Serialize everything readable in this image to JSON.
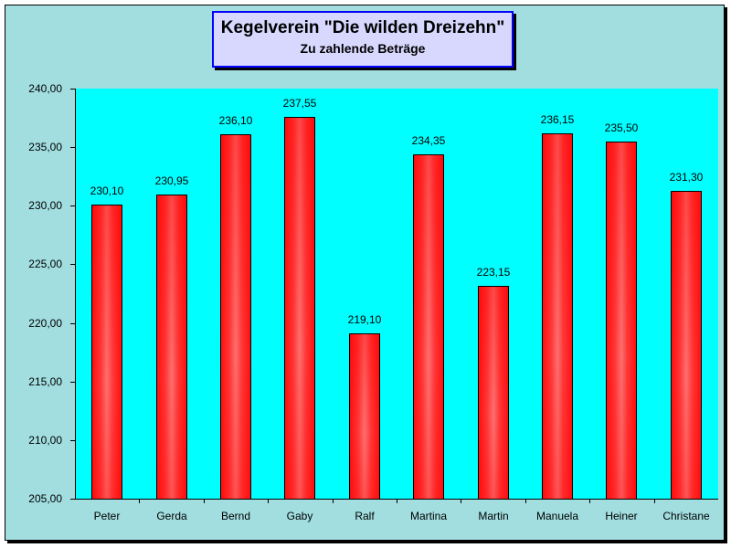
{
  "chart_data": {
    "type": "bar",
    "title": "Kegelverein \"Die wilden Dreizehn\"",
    "subtitle": "Zu zahlende Beträge",
    "xlabel": "",
    "ylabel": "",
    "ylim": [
      205,
      240
    ],
    "grid": false,
    "legend": null,
    "categories": [
      "Peter",
      "Gerda",
      "Bernd",
      "Gaby",
      "Ralf",
      "Martina",
      "Martin",
      "Manuela",
      "Heiner",
      "Christane"
    ],
    "values": [
      230.1,
      230.95,
      236.1,
      237.55,
      219.1,
      234.35,
      223.15,
      236.15,
      235.5,
      231.3
    ],
    "value_labels": [
      "230,10",
      "230,95",
      "236,10",
      "237,55",
      "219,10",
      "234,35",
      "223,15",
      "236,15",
      "235,50",
      "231,30"
    ],
    "y_ticks": [
      "240,00",
      "235,00",
      "230,00",
      "225,00",
      "220,00",
      "215,00",
      "210,00",
      "205,00"
    ],
    "colors": {
      "bar": "#ff1010",
      "plot_bg": "#00ffff",
      "chart_bg": "#a2dee0",
      "title_bg": "#d8d8ff",
      "title_border": "#0000ff"
    }
  }
}
